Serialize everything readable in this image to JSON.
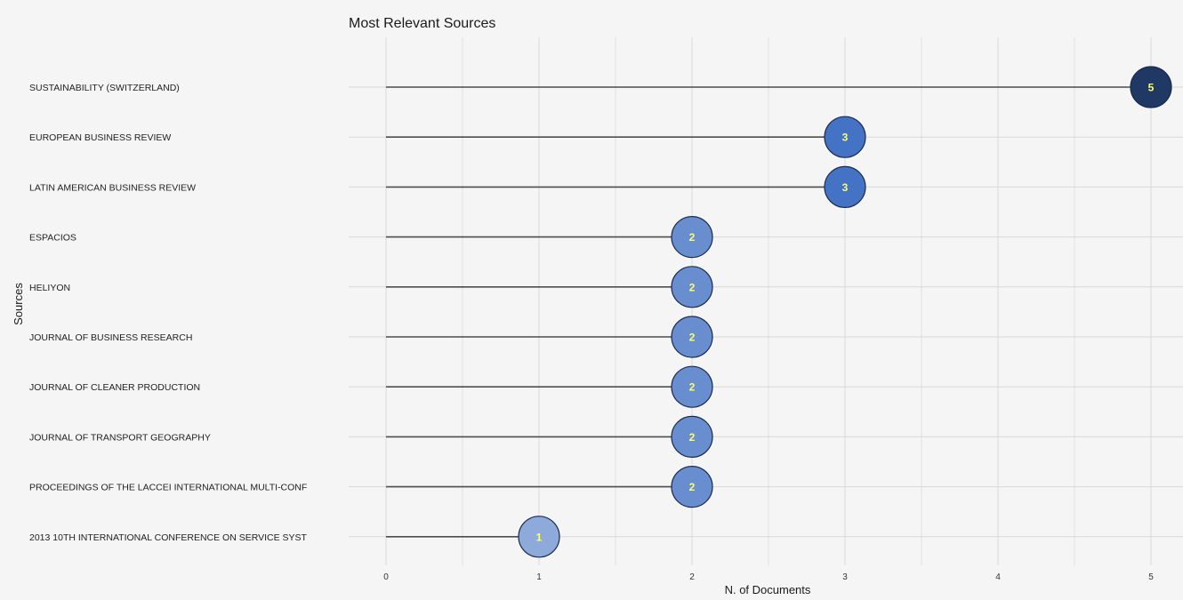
{
  "colors": {
    "background": "#f5f5f5",
    "grid": "#d9d9d9",
    "stem": "#4d4d4d",
    "label_text": "#ffff66",
    "bubble_stroke": "#1a2a4a",
    "scale_low": "#8eaadb",
    "scale_mid": "#4472c4",
    "scale_high": "#1f3864"
  },
  "chart_data": {
    "type": "lollipop",
    "title": "Most Relevant Sources",
    "xlabel": "N. of Documents",
    "ylabel": "Sources",
    "xlim": [
      0,
      5
    ],
    "xticks": [
      "0",
      "1",
      "2",
      "3",
      "4",
      "5"
    ],
    "grid": true,
    "categories": [
      "SUSTAINABILITY (SWITZERLAND)",
      "EUROPEAN BUSINESS REVIEW",
      "LATIN AMERICAN BUSINESS REVIEW",
      "ESPACIOS",
      "HELIYON",
      "JOURNAL OF BUSINESS RESEARCH",
      "JOURNAL OF CLEANER PRODUCTION",
      "JOURNAL OF TRANSPORT GEOGRAPHY",
      "PROCEEDINGS OF THE LACCEI INTERNATIONAL MULTI-CONF",
      "2013 10TH INTERNATIONAL CONFERENCE ON SERVICE SYST"
    ],
    "values": [
      5,
      3,
      3,
      2,
      2,
      2,
      2,
      2,
      2,
      1
    ],
    "data_labels": [
      "5",
      "3",
      "3",
      "2",
      "2",
      "2",
      "2",
      "2",
      "2",
      "1"
    ]
  }
}
